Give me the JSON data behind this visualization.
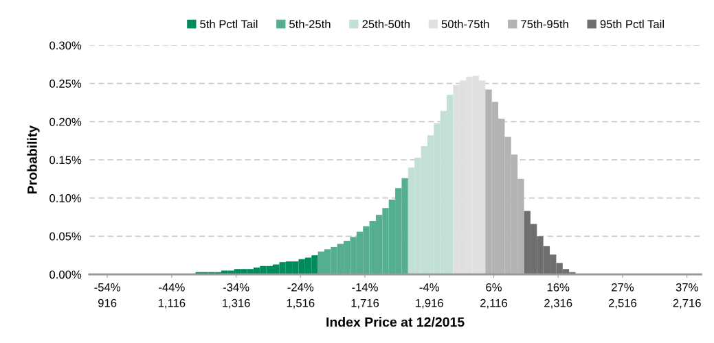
{
  "chart_data": {
    "type": "bar",
    "xlabel": "Index Price at 12/2015",
    "ylabel": "Probability",
    "xlim": [
      860,
      2760
    ],
    "xticks": [
      916,
      {
        "value": 1116,
        "label": "1,116"
      },
      {
        "value": 1316,
        "label": "1,316"
      },
      {
        "value": 1516,
        "label": "1,516"
      },
      {
        "value": 1716,
        "label": "1,716"
      },
      {
        "value": 1916,
        "label": "1,916"
      },
      {
        "value": 2116,
        "label": "2,116"
      },
      {
        "value": 2316,
        "label": "2,316"
      },
      {
        "value": 2516,
        "label": "2,516"
      },
      {
        "value": 2716,
        "label": "2,716"
      }
    ],
    "annotations": [
      "-54%",
      "-44%",
      "-34%",
      "-24%",
      "-14%",
      "-4%",
      "6%",
      "16%",
      "27%",
      "37%"
    ],
    "ylim": [
      0,
      0.3
    ],
    "yticks": [
      {
        "value": 0,
        "label": "0.00%"
      },
      {
        "value": 0.05,
        "label": "0.05%"
      },
      {
        "value": 0.1,
        "label": "0.10%"
      },
      {
        "value": 0.15,
        "label": "0.15%"
      },
      {
        "value": 0.2,
        "label": "0.20%"
      },
      {
        "value": 0.25,
        "label": "0.25%"
      },
      {
        "value": 0.3,
        "label": "0.30%"
      }
    ],
    "grid": "y",
    "legend": "top",
    "series": [
      {
        "name": "5th Pctl Tail",
        "color": "#008c5a",
        "x": [
          1200,
          1220,
          1240,
          1260,
          1280,
          1300,
          1320,
          1340,
          1360,
          1380,
          1400,
          1420,
          1440,
          1460,
          1480,
          1500,
          1520,
          1540,
          1560
        ],
        "values": [
          0.003,
          0.003,
          0.003,
          0.003,
          0.005,
          0.005,
          0.007,
          0.007,
          0.007,
          0.009,
          0.011,
          0.011,
          0.013,
          0.016,
          0.017,
          0.017,
          0.02,
          0.022,
          0.025
        ]
      },
      {
        "name": "5th-25th",
        "color": "#55ae90",
        "x": [
          1580,
          1600,
          1620,
          1640,
          1660,
          1680,
          1700,
          1720,
          1740,
          1760,
          1780,
          1800,
          1820,
          1840
        ],
        "values": [
          0.03,
          0.033,
          0.036,
          0.04,
          0.044,
          0.049,
          0.056,
          0.063,
          0.07,
          0.078,
          0.087,
          0.098,
          0.113,
          0.126
        ]
      },
      {
        "name": "25th-50th",
        "color": "#c3e0d5",
        "x": [
          1860,
          1880,
          1900,
          1920,
          1940,
          1960,
          1980
        ],
        "values": [
          0.14,
          0.153,
          0.168,
          0.182,
          0.198,
          0.214,
          0.235
        ]
      },
      {
        "name": "50th-75th",
        "color": "#e0e0e0",
        "x": [
          2000,
          2020,
          2040,
          2060,
          2080
        ],
        "values": [
          0.248,
          0.254,
          0.259,
          0.26,
          0.254
        ]
      },
      {
        "name": "75th-95th",
        "color": "#b3b3b3",
        "x": [
          2100,
          2120,
          2140,
          2160,
          2180,
          2200
        ],
        "values": [
          0.242,
          0.226,
          0.204,
          0.18,
          0.157,
          0.125
        ]
      },
      {
        "name": "95th Pctl Tail",
        "color": "#6e6e6e",
        "x": [
          2220,
          2240,
          2260,
          2280,
          2300,
          2320,
          2340,
          2360
        ],
        "values": [
          0.083,
          0.066,
          0.05,
          0.037,
          0.026,
          0.015,
          0.007,
          0.003
        ]
      }
    ]
  }
}
